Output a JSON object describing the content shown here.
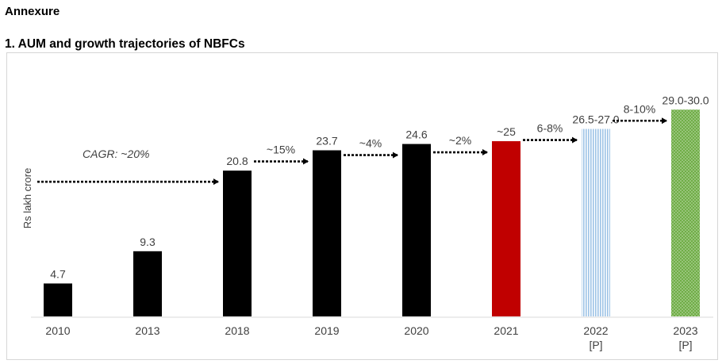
{
  "page": {
    "heading": "Annexure",
    "subheading": "1. AUM and growth trajectories of NBFCs"
  },
  "chart_data": {
    "type": "bar",
    "title": "1. AUM and growth trajectories of NBFCs",
    "xlabel": "",
    "ylabel": "Rs lakh crore",
    "ylim": [
      0,
      31
    ],
    "grid": false,
    "categories": [
      "2010",
      "2013",
      "2018",
      "2019",
      "2020",
      "2021",
      "2022",
      "2023"
    ],
    "category_sublabels": [
      "",
      "",
      "",
      "",
      "",
      "",
      "[P]",
      "[P]"
    ],
    "values": [
      4.7,
      9.3,
      20.8,
      23.7,
      24.6,
      25,
      26.75,
      29.5
    ],
    "data_labels": [
      "4.7",
      "9.3",
      "20.8",
      "23.7",
      "24.6",
      "~25",
      "26.5-27.0",
      "29.0-30.0"
    ],
    "bar_styles": [
      "solid",
      "solid",
      "solid",
      "solid",
      "solid",
      "solid",
      "vertical-stripes",
      "dotted"
    ],
    "colors": {
      "actual": "#000000",
      "year_2021": "#c00000",
      "projection_2022": "#9dc3e6",
      "projection_2023": "#70ad47",
      "arrow": "#000000",
      "text": "#404040"
    },
    "growth_annotations": [
      {
        "label": "CAGR: ~20%",
        "from": "start",
        "to": "2018",
        "style": "italic"
      },
      {
        "label": "~15%",
        "from": "2018",
        "to": "2019"
      },
      {
        "label": "~4%",
        "from": "2019",
        "to": "2020"
      },
      {
        "label": "~2%",
        "from": "2020",
        "to": "2021"
      },
      {
        "label": "6-8%",
        "from": "2021",
        "to": "2022"
      },
      {
        "label": "8-10%",
        "from": "2022",
        "to": "2023"
      }
    ]
  }
}
